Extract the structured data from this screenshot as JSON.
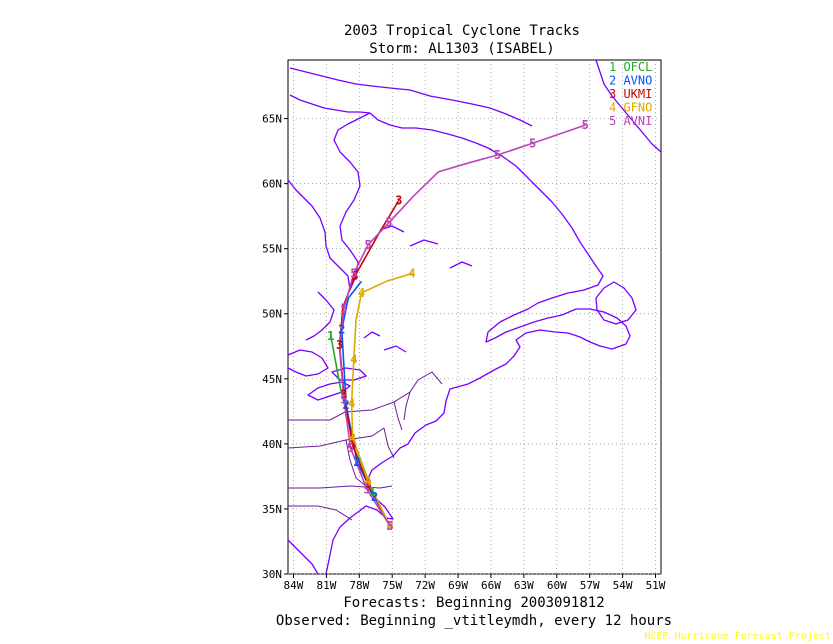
{
  "chart_data": {
    "type": "line",
    "title": "2003 Tropical Cyclone Tracks",
    "subtitle": "Storm: AL1303 (ISABEL)",
    "footer_forecast": "Forecasts: Beginning 2003091812",
    "footer_observed": "Observed: Beginning _vtitleymdh, every 12 hours",
    "credit": "NCEP Hurricane Forecast Project",
    "x_range": [
      -84.5,
      -50.5
    ],
    "y_range": [
      30,
      69.5
    ],
    "x_ticks": [
      {
        "value": -84,
        "label": "84W"
      },
      {
        "value": -81,
        "label": "81W"
      },
      {
        "value": -78,
        "label": "78W"
      },
      {
        "value": -75,
        "label": "75W"
      },
      {
        "value": -72,
        "label": "72W"
      },
      {
        "value": -69,
        "label": "69W"
      },
      {
        "value": -66,
        "label": "66W"
      },
      {
        "value": -63,
        "label": "63W"
      },
      {
        "value": -60,
        "label": "60W"
      },
      {
        "value": -57,
        "label": "57W"
      },
      {
        "value": -54,
        "label": "54W"
      },
      {
        "value": -51,
        "label": "51W"
      }
    ],
    "y_ticks": [
      {
        "value": 30,
        "label": "30N"
      },
      {
        "value": 35,
        "label": "35N"
      },
      {
        "value": 40,
        "label": "40N"
      },
      {
        "value": 45,
        "label": "45N"
      },
      {
        "value": 50,
        "label": "50N"
      },
      {
        "value": 55,
        "label": "55N"
      },
      {
        "value": 60,
        "label": "60N"
      },
      {
        "value": 65,
        "label": "65N"
      }
    ],
    "grid": true,
    "legend_position": "top-right",
    "series": [
      {
        "name": "1 OFCL",
        "color": "#22aa22",
        "x": [
          -75.2,
          -76.8,
          -78.5,
          -79.7,
          -80.6
        ],
        "y": [
          33.7,
          36.3,
          40.2,
          44.2,
          48.3
        ],
        "markers": [
          "",
          "1",
          "",
          "",
          "1"
        ]
      },
      {
        "name": "2 AVNO",
        "color": "#0055ff",
        "x": [
          -75.2,
          -76.6,
          -78.2,
          -79.2,
          -79.6,
          -79.0,
          -77.8
        ],
        "y": [
          33.7,
          35.9,
          38.6,
          43.0,
          48.8,
          51.2,
          52.5
        ],
        "markers": [
          "",
          "2",
          "2",
          "2",
          "2",
          "",
          ""
        ]
      },
      {
        "name": "3 UKMI",
        "color": "#cc0000",
        "x": [
          -75.2,
          -77.2,
          -78.6,
          -79.4,
          -79.8,
          -79.5,
          -78.4,
          -76.2,
          -74.4
        ],
        "y": [
          33.7,
          36.9,
          39.9,
          43.8,
          47.6,
          50.5,
          52.9,
          56.2,
          58.7
        ],
        "markers": [
          "3",
          "3",
          "3",
          "3",
          "3",
          "",
          "3",
          "",
          "3"
        ]
      },
      {
        "name": "4 GFNO",
        "color": "#ddaa00",
        "x": [
          -75.2,
          -77.2,
          -78.6,
          -78.7,
          -78.5,
          -78.3,
          -77.8,
          -75.5,
          -73.2
        ],
        "y": [
          33.7,
          37.1,
          40.4,
          43.1,
          46.5,
          49.5,
          51.6,
          52.5,
          53.1
        ],
        "markers": [
          "4",
          "4",
          "4",
          "4",
          "4",
          "",
          "4",
          "",
          "4"
        ]
      },
      {
        "name": "5 AVNI",
        "color": "#bb44bb",
        "x": [
          -75.2,
          -77.3,
          -78.8,
          -79.4,
          -79.8,
          -79.4,
          -78.5,
          -77.2,
          -75.3,
          -73.1,
          -70.8,
          -68.0,
          -65.4,
          -62.2,
          -57.4
        ],
        "y": [
          33.7,
          36.5,
          39.7,
          43.4,
          47.3,
          50.4,
          53.1,
          55.3,
          57.0,
          59.0,
          60.9,
          61.6,
          62.2,
          63.1,
          64.5
        ],
        "markers": [
          "5",
          "5",
          "5",
          "5",
          "",
          "5",
          "5",
          "5",
          "5",
          "",
          "",
          "",
          "5",
          "5",
          "5"
        ]
      }
    ]
  }
}
